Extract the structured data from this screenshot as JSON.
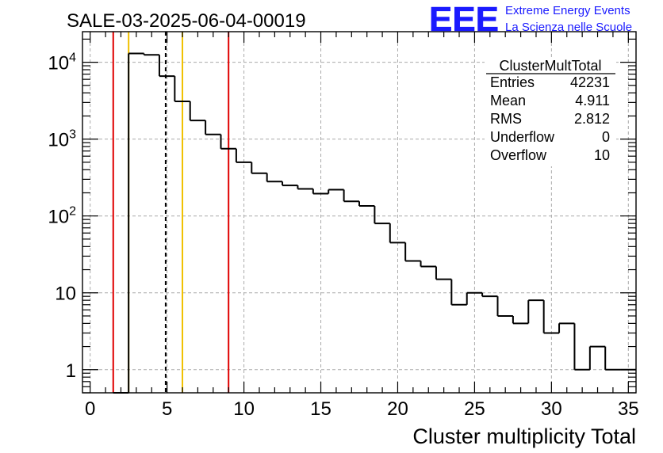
{
  "chart_data": {
    "type": "bar",
    "title": "SALE-03-2025-06-04-00019",
    "xlabel": "Cluster multiplicity Total",
    "ylabel": "",
    "xlim": [
      -0.5,
      35.5
    ],
    "ylim": [
      0.5,
      25000
    ],
    "y_scale": "log",
    "grid": true,
    "histogram": {
      "bin_width": 1,
      "bins": [
        {
          "x": 2,
          "value": 0
        },
        {
          "x": 3,
          "value": 13000
        },
        {
          "x": 4,
          "value": 12500
        },
        {
          "x": 5,
          "value": 6600
        },
        {
          "x": 6,
          "value": 3100
        },
        {
          "x": 7,
          "value": 1750
        },
        {
          "x": 8,
          "value": 1150
        },
        {
          "x": 9,
          "value": 750
        },
        {
          "x": 10,
          "value": 500
        },
        {
          "x": 11,
          "value": 360
        },
        {
          "x": 12,
          "value": 280
        },
        {
          "x": 13,
          "value": 250
        },
        {
          "x": 14,
          "value": 225
        },
        {
          "x": 15,
          "value": 195
        },
        {
          "x": 16,
          "value": 220
        },
        {
          "x": 17,
          "value": 155
        },
        {
          "x": 18,
          "value": 135
        },
        {
          "x": 19,
          "value": 80
        },
        {
          "x": 20,
          "value": 45
        },
        {
          "x": 21,
          "value": 26
        },
        {
          "x": 22,
          "value": 22
        },
        {
          "x": 23,
          "value": 15
        },
        {
          "x": 24,
          "value": 7
        },
        {
          "x": 25,
          "value": 10
        },
        {
          "x": 26,
          "value": 9
        },
        {
          "x": 27,
          "value": 5
        },
        {
          "x": 28,
          "value": 4
        },
        {
          "x": 29,
          "value": 8
        },
        {
          "x": 30,
          "value": 3
        },
        {
          "x": 31,
          "value": 4
        },
        {
          "x": 32,
          "value": 1
        },
        {
          "x": 33,
          "value": 2
        },
        {
          "x": 34,
          "value": 1
        },
        {
          "x": 35,
          "value": 1
        }
      ]
    },
    "x_ticks": [
      "0",
      "5",
      "10",
      "15",
      "20",
      "25",
      "30",
      "35"
    ],
    "y_ticks": [
      {
        "value": 1,
        "label": "1"
      },
      {
        "value": 10,
        "label": "10"
      },
      {
        "value": 100,
        "base": "10",
        "exp": "2"
      },
      {
        "value": 1000,
        "base": "10",
        "exp": "3"
      },
      {
        "value": 10000,
        "base": "10",
        "exp": "4"
      }
    ],
    "vertical_lines": [
      {
        "x": 1.5,
        "color": "#e00000",
        "style": "solid"
      },
      {
        "x": 2.5,
        "color": "#f0c000",
        "style": "solid"
      },
      {
        "x": 4.911,
        "color": "#000000",
        "style": "dashed"
      },
      {
        "x": 6.0,
        "color": "#f0c000",
        "style": "solid"
      },
      {
        "x": 9.0,
        "color": "#e00000",
        "style": "solid"
      }
    ],
    "stats_box": {
      "title": "ClusterMultTotal",
      "rows": [
        {
          "label": "Entries",
          "value": "42231"
        },
        {
          "label": "Mean",
          "value": "4.911"
        },
        {
          "label": "RMS",
          "value": "2.812"
        },
        {
          "label": "Underflow",
          "value": "0"
        },
        {
          "label": "Overflow",
          "value": "10"
        }
      ]
    }
  },
  "logo": {
    "text": "EEE",
    "line1": "Extreme Energy Events",
    "line2": "La Scienza nelle Scuole",
    "color": "#1a1aff"
  }
}
